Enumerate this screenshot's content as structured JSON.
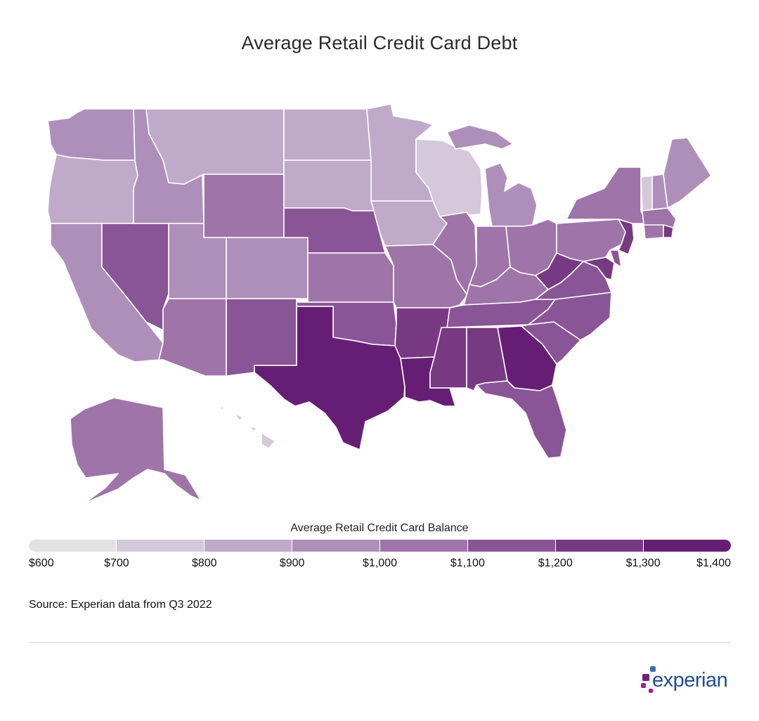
{
  "title": "Average Retail Credit Card Debt",
  "legend": {
    "title": "Average Retail Credit Card Balance",
    "ticks": [
      "$600",
      "$700",
      "$800",
      "$900",
      "$1,000",
      "$1,100",
      "$1,200",
      "$1,300",
      "$1,400"
    ],
    "colors": [
      "#e2e2e2",
      "#d5c8da",
      "#c0aac9",
      "#ae8fba",
      "#9f74a9",
      "#8a5596",
      "#783983",
      "#661e74"
    ]
  },
  "source": "Source: Experian data from Q3 2022",
  "brand": {
    "name": "experian",
    "text_color": "#1d4f91",
    "dot_colors": [
      "#6d2077",
      "#1d4f91",
      "#af1685",
      "#426da9",
      "#982881"
    ]
  },
  "chart_data": {
    "type": "choropleth",
    "value_bins": [
      600,
      700,
      800,
      900,
      1000,
      1100,
      1200,
      1300,
      1400
    ],
    "state_bin_index": {
      "WA": 3,
      "OR": 2,
      "CA": 3,
      "NV": 5,
      "ID": 3,
      "MT": 2,
      "WY": 4,
      "UT": 3,
      "AZ": 4,
      "CO": 3,
      "NM": 5,
      "ND": 2,
      "SD": 2,
      "NE": 5,
      "KS": 4,
      "OK": 5,
      "TX": 7,
      "MN": 2,
      "IA": 2,
      "MO": 4,
      "AR": 6,
      "LA": 7,
      "WI": 1,
      "IL": 4,
      "MI": 3,
      "IN": 4,
      "OH": 4,
      "KY": 4,
      "TN": 5,
      "MS": 6,
      "AL": 6,
      "GA": 7,
      "FL": 5,
      "SC": 5,
      "NC": 5,
      "VA": 5,
      "WV": 6,
      "PA": 4,
      "NY": 4,
      "VT": 1,
      "NH": 3,
      "ME": 3,
      "MA": 4,
      "CT": 4,
      "RI": 6,
      "NJ": 6,
      "DE": 5,
      "MD": 6,
      "AK": 4,
      "HI": 1
    }
  }
}
